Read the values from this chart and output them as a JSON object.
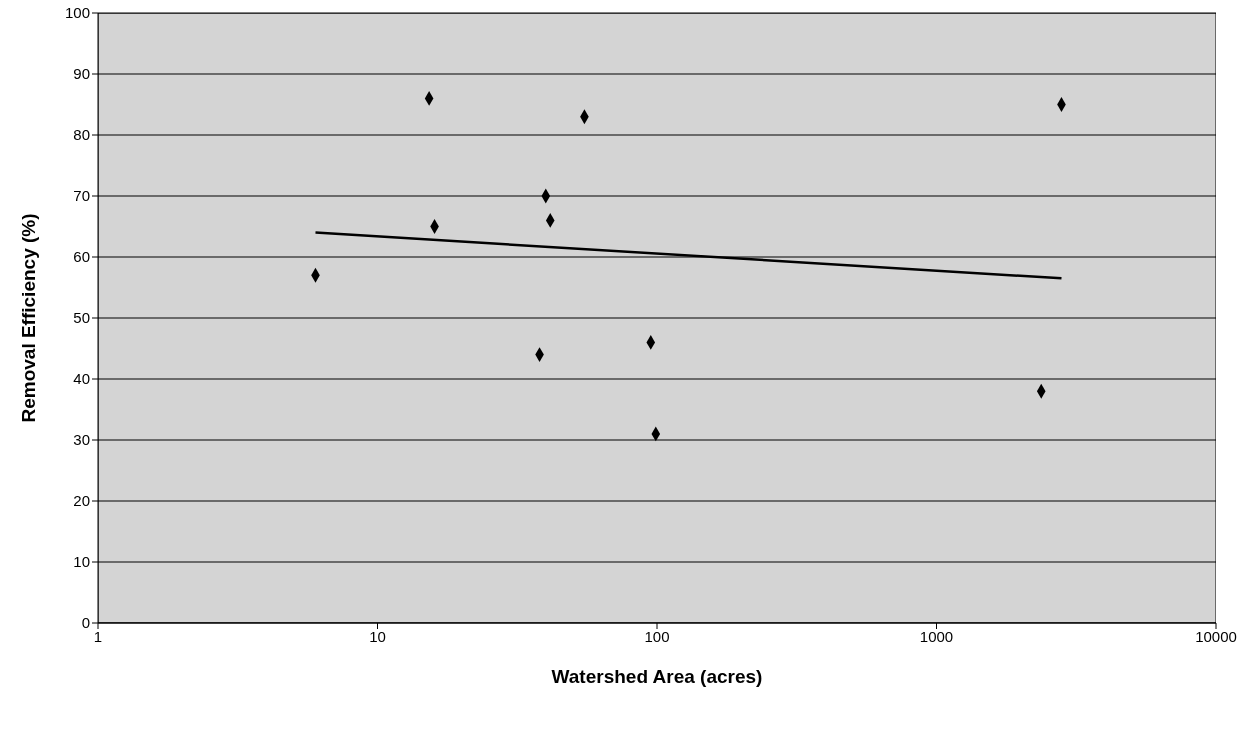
{
  "chart_data": {
    "type": "scatter",
    "xlabel": "Watershed Area (acres)",
    "ylabel": "Removal Efficiency (%)",
    "series": [
      {
        "color": "#000000",
        "x": [
          6,
          15.3,
          16,
          38,
          40,
          41.5,
          55,
          95,
          99,
          2370,
          2800
        ],
        "values": [
          57,
          86,
          65,
          44,
          70,
          66,
          83,
          46,
          31,
          38,
          85
        ]
      },
      {
        "type": "line",
        "color": "#000000",
        "marker": "none",
        "x": [
          6,
          2800
        ],
        "values": [
          64,
          56.5
        ]
      }
    ],
    "log": "x",
    "xlim": [
      1,
      10000
    ],
    "xticks": [
      1,
      10,
      100,
      1000,
      10000
    ],
    "ylim": [
      0,
      100
    ],
    "yticks": [
      0,
      10,
      20,
      30,
      40,
      50,
      60,
      70,
      80,
      90,
      100
    ],
    "grid": "y",
    "marker": "diamond"
  }
}
